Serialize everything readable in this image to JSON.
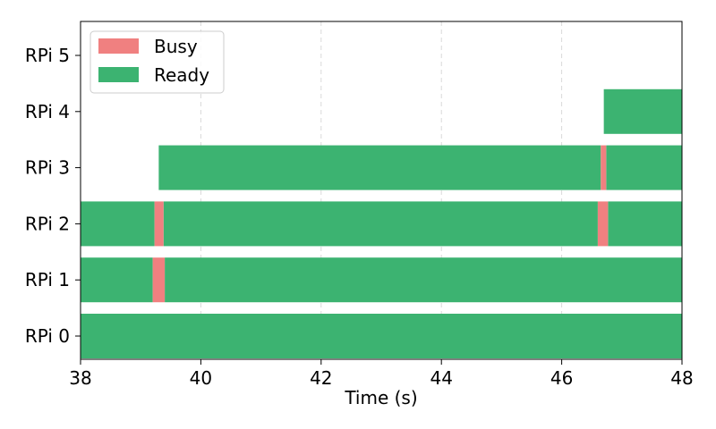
{
  "chart_data": {
    "type": "gantt",
    "xlabel": "Time (s)",
    "xlim": [
      38,
      48
    ],
    "x_ticks": [
      38,
      40,
      42,
      44,
      46,
      48
    ],
    "grid": "vertical dashed",
    "legend_position": "top-left",
    "categories": [
      "RPi 0",
      "RPi 1",
      "RPi 2",
      "RPi 3",
      "RPi 4",
      "RPi 5"
    ],
    "series": [
      {
        "name": "Busy",
        "color": "#F08080",
        "intervals": [
          {
            "device": "RPi 1",
            "start": 39.2,
            "end": 39.4
          },
          {
            "device": "RPi 2",
            "start": 39.23,
            "end": 39.38
          },
          {
            "device": "RPi 2",
            "start": 46.6,
            "end": 46.77
          },
          {
            "device": "RPi 3",
            "start": 46.65,
            "end": 46.74
          }
        ]
      },
      {
        "name": "Ready",
        "color": "#3CB371",
        "intervals": [
          {
            "device": "RPi 0",
            "start": 38,
            "end": 48
          },
          {
            "device": "RPi 1",
            "start": 38,
            "end": 39.2
          },
          {
            "device": "RPi 1",
            "start": 39.4,
            "end": 48
          },
          {
            "device": "RPi 2",
            "start": 38,
            "end": 39.23
          },
          {
            "device": "RPi 2",
            "start": 39.38,
            "end": 46.6
          },
          {
            "device": "RPi 2",
            "start": 46.77,
            "end": 48
          },
          {
            "device": "RPi 3",
            "start": 39.3,
            "end": 46.65
          },
          {
            "device": "RPi 3",
            "start": 46.74,
            "end": 48
          },
          {
            "device": "RPi 4",
            "start": 46.7,
            "end": 48
          }
        ]
      }
    ]
  }
}
